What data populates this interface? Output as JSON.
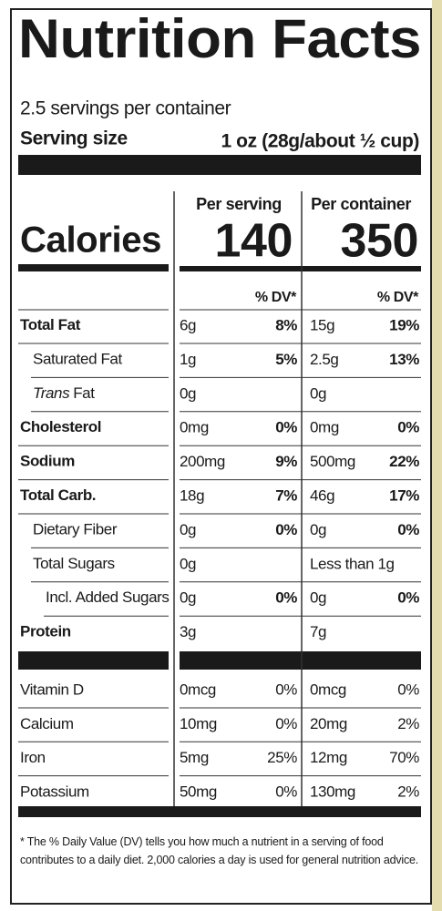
{
  "title": "Nutrition Facts",
  "servings_per_container": "2.5 servings per container",
  "serving_size": {
    "label": "Serving size",
    "value": "1 oz (28g/about ½ cup)"
  },
  "calories": {
    "label": "Calories",
    "per_serving_header": "Per serving",
    "per_container_header": "Per container",
    "per_serving": "140",
    "per_container": "350"
  },
  "dv_header": {
    "per_serving": "% DV*",
    "per_container": "% DV*"
  },
  "nutrients": [
    {
      "name": "Total Fat",
      "per_serving": {
        "amount": "6g",
        "dv": "8%"
      },
      "per_container": {
        "amount": "15g",
        "dv": "19%"
      },
      "sub": [
        {
          "name": "Saturated Fat",
          "per_serving": {
            "amount": "1g",
            "dv": "5%"
          },
          "per_container": {
            "amount": "2.5g",
            "dv": "13%"
          }
        },
        {
          "name_italic": "Trans",
          "name": "Fat",
          "per_serving": {
            "amount": "0g"
          },
          "per_container": {
            "amount": "0g"
          }
        }
      ]
    },
    {
      "name": "Cholesterol",
      "per_serving": {
        "amount": "0mg",
        "dv": "0%"
      },
      "per_container": {
        "amount": "0mg",
        "dv": "0%"
      }
    },
    {
      "name": "Sodium",
      "per_serving": {
        "amount": "200mg",
        "dv": "9%"
      },
      "per_container": {
        "amount": "500mg",
        "dv": "22%"
      }
    },
    {
      "name": "Total Carb.",
      "per_serving": {
        "amount": "18g",
        "dv": "7%"
      },
      "per_container": {
        "amount": "46g",
        "dv": "17%"
      },
      "sub": [
        {
          "name": "Dietary Fiber",
          "per_serving": {
            "amount": "0g",
            "dv": "0%"
          },
          "per_container": {
            "amount": "0g",
            "dv": "0%"
          }
        },
        {
          "name": "Total Sugars",
          "per_serving": {
            "amount": "0g"
          },
          "per_container": {
            "amount": "Less than 1g"
          },
          "sub": [
            {
              "name": "Incl. Added Sugars",
              "per_serving": {
                "amount": "0g",
                "dv": "0%"
              },
              "per_container": {
                "amount": "0g",
                "dv": "0%"
              }
            }
          ]
        }
      ]
    },
    {
      "name": "Protein",
      "per_serving": {
        "amount": "3g"
      },
      "per_container": {
        "amount": "7g"
      }
    }
  ],
  "vitamins": [
    {
      "name": "Vitamin D",
      "per_serving": {
        "amount": "0mcg",
        "dv": "0%"
      },
      "per_container": {
        "amount": "0mcg",
        "dv": "0%"
      }
    },
    {
      "name": "Calcium",
      "per_serving": {
        "amount": "10mg",
        "dv": "0%"
      },
      "per_container": {
        "amount": "20mg",
        "dv": "2%"
      }
    },
    {
      "name": "Iron",
      "per_serving": {
        "amount": "5mg",
        "dv": "25%"
      },
      "per_container": {
        "amount": "12mg",
        "dv": "70%"
      }
    },
    {
      "name": "Potassium",
      "per_serving": {
        "amount": "50mg",
        "dv": "0%"
      },
      "per_container": {
        "amount": "130mg",
        "dv": "2%"
      }
    }
  ],
  "footnote": "* The % Daily Value (DV) tells you how much a nutrient in a serving of food contributes to a daily diet. 2,000 calories a day is used for general nutrition advice."
}
